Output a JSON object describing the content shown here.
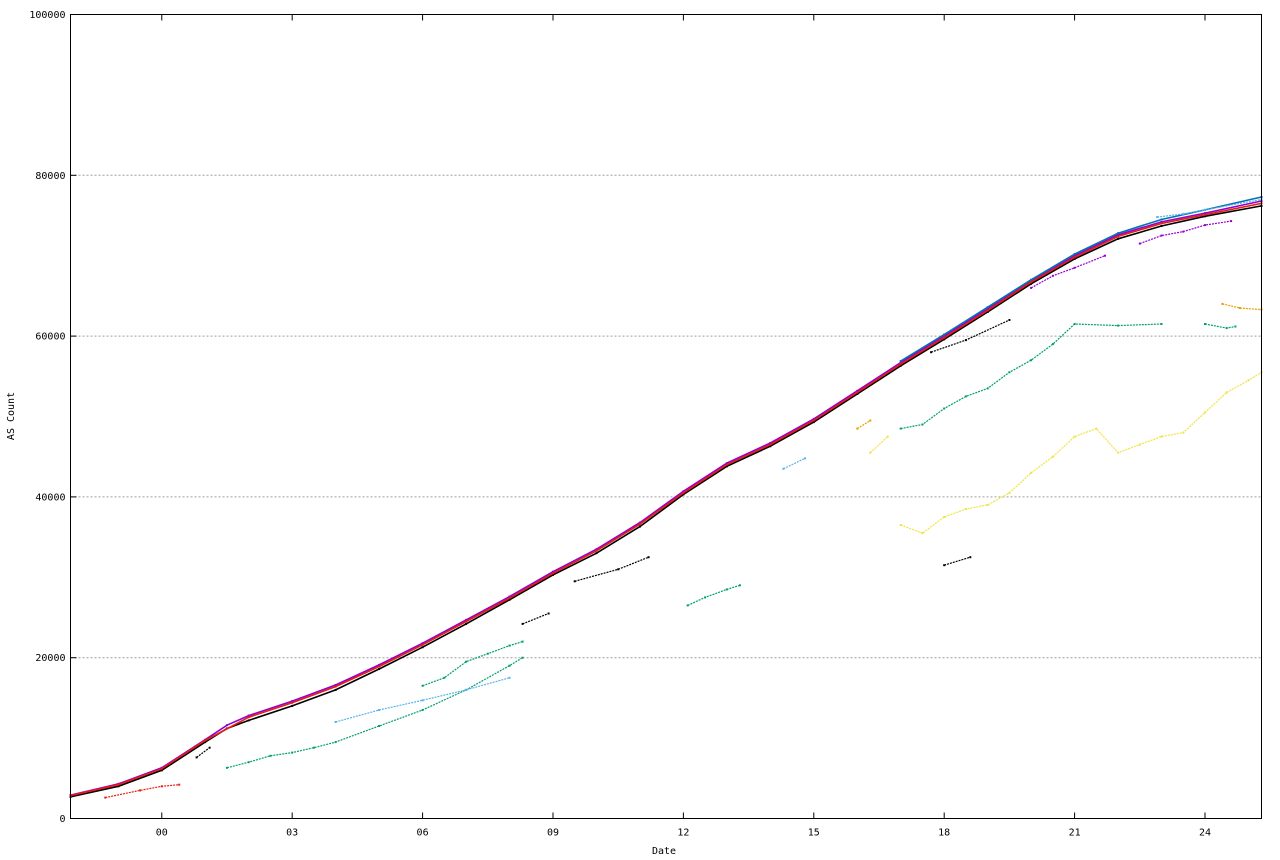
{
  "chart_data": {
    "type": "scatter",
    "title": "",
    "xlabel": "Date",
    "ylabel": "AS Count",
    "xlim": [
      -2.1,
      25.3
    ],
    "ylim": [
      0,
      100000
    ],
    "x_ticks": [
      {
        "value": 0,
        "label": "00"
      },
      {
        "value": 3,
        "label": "03"
      },
      {
        "value": 6,
        "label": "06"
      },
      {
        "value": 9,
        "label": "09"
      },
      {
        "value": 12,
        "label": "12"
      },
      {
        "value": 15,
        "label": "15"
      },
      {
        "value": 18,
        "label": "18"
      },
      {
        "value": 21,
        "label": "21"
      },
      {
        "value": 24,
        "label": "24"
      }
    ],
    "y_ticks": [
      {
        "value": 0,
        "label": "0"
      },
      {
        "value": 20000,
        "label": "20000"
      },
      {
        "value": 40000,
        "label": "40000"
      },
      {
        "value": 60000,
        "label": "60000"
      },
      {
        "value": 80000,
        "label": "80000"
      },
      {
        "value": 100000,
        "label": "100000"
      }
    ],
    "grid": "horizontal dotted",
    "legend": "none",
    "series": [
      {
        "color": "#000000",
        "x": [
          -2.1,
          -1,
          0,
          1,
          1.5,
          2,
          3,
          4,
          5,
          6,
          7,
          8,
          9,
          10,
          11,
          12,
          13,
          14,
          15,
          16,
          17,
          18,
          19,
          20,
          21,
          22,
          23,
          24,
          25.3
        ],
        "y": [
          2700,
          4000,
          6000,
          9500,
          11200,
          12200,
          14000,
          16000,
          18600,
          21300,
          24200,
          27200,
          30300,
          33000,
          36300,
          40300,
          43800,
          46300,
          49300,
          52800,
          56300,
          59600,
          63000,
          66500,
          69600,
          72100,
          73700,
          74900,
          76200
        ]
      },
      {
        "color": "#9400d3",
        "x": [
          -2.1,
          -1,
          0,
          1,
          1.5,
          2,
          3,
          4,
          5,
          6,
          7,
          8,
          9,
          10,
          11,
          12,
          13,
          14,
          15,
          16,
          17,
          18,
          19,
          20,
          21,
          22,
          23,
          24,
          25.3
        ],
        "y": [
          2900,
          4300,
          6300,
          9800,
          11600,
          12800,
          14600,
          16600,
          19100,
          21800,
          24700,
          27600,
          30700,
          33500,
          36800,
          40700,
          44200,
          46700,
          49700,
          53200,
          56700,
          60000,
          63400,
          66800,
          70000,
          72600,
          74200,
          75300,
          76800
        ]
      },
      {
        "color": "#e51e10",
        "x": [
          -2.1,
          -1,
          0,
          1,
          2,
          3,
          4,
          5,
          6,
          7,
          8,
          9,
          10,
          11,
          12,
          13,
          14,
          15,
          16,
          17,
          18,
          19,
          20,
          21,
          22,
          23,
          24,
          25.3
        ],
        "y": [
          2850,
          4200,
          6200,
          9700,
          12600,
          14400,
          16400,
          18900,
          21600,
          24500,
          27400,
          30500,
          33300,
          36600,
          40500,
          44000,
          46500,
          49500,
          53000,
          56500,
          59800,
          63200,
          66700,
          69800,
          72400,
          74000,
          75100,
          76500
        ]
      },
      {
        "color": "#0072b2",
        "x": [
          17,
          18,
          19,
          20,
          21,
          22,
          23,
          24,
          25.3
        ],
        "y": [
          56900,
          60200,
          63600,
          67000,
          70200,
          72800,
          74500,
          75700,
          77300
        ]
      },
      {
        "color": "#009e73",
        "x": [
          1.5,
          2,
          2.5,
          3,
          3.5,
          4,
          5,
          6,
          7,
          8,
          8.3
        ],
        "y": [
          6300,
          7000,
          7800,
          8200,
          8800,
          9500,
          11500,
          13500,
          16000,
          19000,
          20000
        ]
      },
      {
        "color": "#009e73",
        "x": [
          6,
          6.5,
          7,
          7.5,
          8,
          8.3
        ],
        "y": [
          16500,
          17500,
          19500,
          20500,
          21500,
          22000
        ]
      },
      {
        "color": "#009e73",
        "x": [
          12.1,
          12.5,
          13,
          13.3
        ],
        "y": [
          26500,
          27500,
          28500,
          29000
        ]
      },
      {
        "color": "#009e73",
        "x": [
          17,
          17.5,
          18,
          18.5,
          19,
          19.5,
          20,
          20.5,
          21,
          22,
          23
        ],
        "y": [
          48500,
          49000,
          51000,
          52500,
          53500,
          55500,
          57000,
          59000,
          61500,
          61300,
          61500
        ]
      },
      {
        "color": "#009e73",
        "x": [
          24.0,
          24.5,
          24.7
        ],
        "y": [
          61500,
          61000,
          61200
        ]
      },
      {
        "color": "#f0e442",
        "x": [
          17,
          17.5,
          18,
          18.5,
          19,
          19.5,
          20,
          20.5,
          21,
          21.5,
          22,
          22.5,
          23,
          23.5,
          24,
          24.5,
          25,
          25.3
        ],
        "y": [
          36500,
          35500,
          37500,
          38500,
          39000,
          40500,
          43000,
          45000,
          47500,
          48500,
          45500,
          46500,
          47500,
          48000,
          50500,
          53000,
          54500,
          55500
        ]
      },
      {
        "color": "#f0e442",
        "x": [
          16.3,
          16.7
        ],
        "y": [
          45500,
          47500
        ]
      },
      {
        "color": "#e69f00",
        "x": [
          16,
          16.3
        ],
        "y": [
          48500,
          49500
        ]
      },
      {
        "color": "#e69f00",
        "x": [
          24.4,
          24.8,
          25.3
        ],
        "y": [
          64000,
          63500,
          63300
        ]
      },
      {
        "color": "#56b4e9",
        "x": [
          14.3,
          14.8
        ],
        "y": [
          43500,
          44800
        ]
      },
      {
        "color": "#56b4e9",
        "x": [
          4,
          5,
          6,
          7,
          8
        ],
        "y": [
          12000,
          13500,
          14700,
          16000,
          17500
        ]
      },
      {
        "color": "#000000",
        "x": [
          8.3,
          8.9
        ],
        "y": [
          24200,
          25500
        ]
      },
      {
        "color": "#000000",
        "x": [
          9.5,
          10.5,
          11.2
        ],
        "y": [
          29500,
          31000,
          32500
        ]
      },
      {
        "color": "#000000",
        "x": [
          18,
          18.6
        ],
        "y": [
          31500,
          32500
        ]
      },
      {
        "color": "#000000",
        "x": [
          17.7,
          18.5,
          19.5
        ],
        "y": [
          58000,
          59500,
          62000
        ]
      },
      {
        "color": "#000000",
        "x": [
          0.8,
          1.1
        ],
        "y": [
          7600,
          8800
        ]
      },
      {
        "color": "#e51e10",
        "x": [
          -1.3,
          -0.5,
          0,
          0.4
        ],
        "y": [
          2600,
          3500,
          4000,
          4200
        ]
      },
      {
        "color": "#9400d3",
        "x": [
          20,
          20.5,
          21,
          21.7
        ],
        "y": [
          66000,
          67500,
          68500,
          70000
        ]
      },
      {
        "color": "#9400d3",
        "x": [
          22.5,
          23,
          23.5,
          24,
          24.6
        ],
        "y": [
          71500,
          72500,
          73000,
          73800,
          74300
        ]
      },
      {
        "color": "#56b4e9",
        "x": [
          22.9,
          23.5,
          24,
          25.3
        ],
        "y": [
          74800,
          75200,
          75700,
          77000
        ]
      }
    ]
  }
}
